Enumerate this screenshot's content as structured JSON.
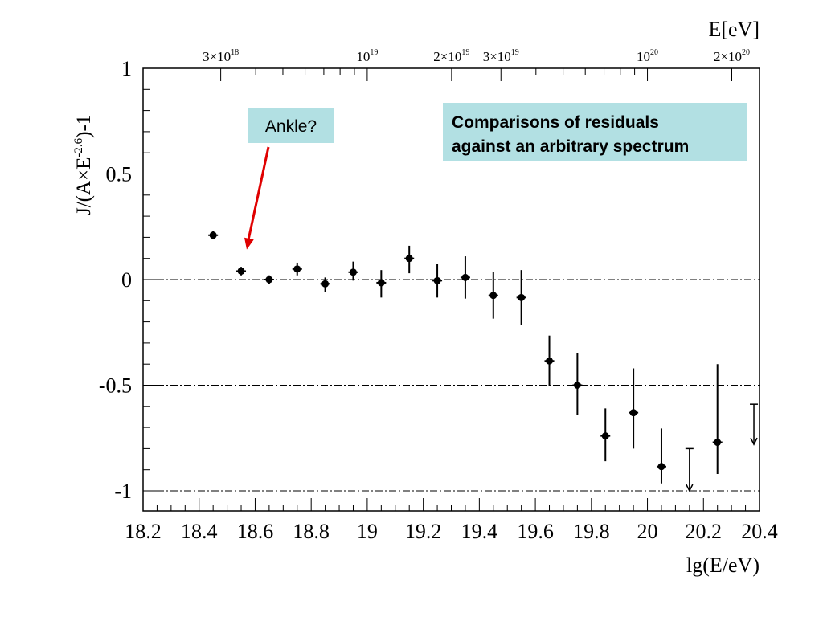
{
  "chart_data": {
    "type": "scatter",
    "title": "",
    "xlabel": "lg(E/eV)",
    "ylabel": "J/(A×E",
    "ylabel_exp": "-2.6",
    "ylabel_tail": ")-1",
    "xlim": [
      18.2,
      20.4
    ],
    "ylim": [
      -1.1,
      1.0
    ],
    "x_ticks": [
      "18.2",
      "18.4",
      "18.6",
      "18.8",
      "19",
      "19.2",
      "19.4",
      "19.6",
      "19.8",
      "20",
      "20.2",
      "20.4"
    ],
    "y_ticks": [
      "1",
      "0.5",
      "0",
      "-0.5",
      "-1"
    ],
    "reference_lines_y": [
      0.5,
      0,
      -0.5,
      -1
    ],
    "top_axis": {
      "label": "E[eV]",
      "ticks": [
        {
          "base": "3×10",
          "exp": "18"
        },
        {
          "base": "10",
          "exp": "19"
        },
        {
          "base": "2×10",
          "exp": "19"
        },
        {
          "base": "3×10",
          "exp": "19"
        },
        {
          "base": "10",
          "exp": "20"
        },
        {
          "base": "2×10",
          "exp": "20"
        }
      ]
    },
    "points": [
      {
        "x": 18.45,
        "y": 0.21,
        "err_lo": 0.02,
        "err_hi": 0.02
      },
      {
        "x": 18.55,
        "y": 0.04,
        "err_lo": 0.02,
        "err_hi": 0.02
      },
      {
        "x": 18.65,
        "y": 0.0,
        "err_lo": 0.02,
        "err_hi": 0.02
      },
      {
        "x": 18.75,
        "y": 0.05,
        "err_lo": 0.03,
        "err_hi": 0.03
      },
      {
        "x": 18.85,
        "y": -0.02,
        "err_lo": 0.04,
        "err_hi": 0.03
      },
      {
        "x": 18.95,
        "y": 0.035,
        "err_lo": 0.04,
        "err_hi": 0.05
      },
      {
        "x": 19.05,
        "y": -0.015,
        "err_lo": 0.07,
        "err_hi": 0.06
      },
      {
        "x": 19.15,
        "y": 0.1,
        "err_lo": 0.07,
        "err_hi": 0.06
      },
      {
        "x": 19.25,
        "y": -0.005,
        "err_lo": 0.08,
        "err_hi": 0.08
      },
      {
        "x": 19.35,
        "y": 0.01,
        "err_lo": 0.1,
        "err_hi": 0.1
      },
      {
        "x": 19.45,
        "y": -0.075,
        "err_lo": 0.11,
        "err_hi": 0.11
      },
      {
        "x": 19.55,
        "y": -0.085,
        "err_lo": 0.13,
        "err_hi": 0.13
      },
      {
        "x": 19.65,
        "y": -0.385,
        "err_lo": 0.12,
        "err_hi": 0.12
      },
      {
        "x": 19.75,
        "y": -0.5,
        "err_lo": 0.14,
        "err_hi": 0.15
      },
      {
        "x": 19.85,
        "y": -0.74,
        "err_lo": 0.12,
        "err_hi": 0.13
      },
      {
        "x": 19.95,
        "y": -0.63,
        "err_lo": 0.17,
        "err_hi": 0.21
      },
      {
        "x": 20.05,
        "y": -0.885,
        "err_lo": 0.08,
        "err_hi": 0.18
      },
      {
        "x": 20.25,
        "y": -0.77,
        "err_lo": 0.15,
        "err_hi": 0.37
      }
    ],
    "upper_limits": [
      {
        "x": 20.15,
        "y": -1.0,
        "top": -0.8
      },
      {
        "x": 20.38,
        "y": -0.78,
        "top": -0.59
      }
    ],
    "annotations": [
      {
        "text": "Ankle?",
        "box_color": "#b2e0e3",
        "arrow_color": "#e00000",
        "arrow_target": {
          "x": 18.57,
          "y": 0.18
        }
      },
      {
        "lines": [
          "Comparisons of residuals",
          "against an arbitrary spectrum"
        ],
        "box_color": "#b2e0e3"
      }
    ]
  }
}
